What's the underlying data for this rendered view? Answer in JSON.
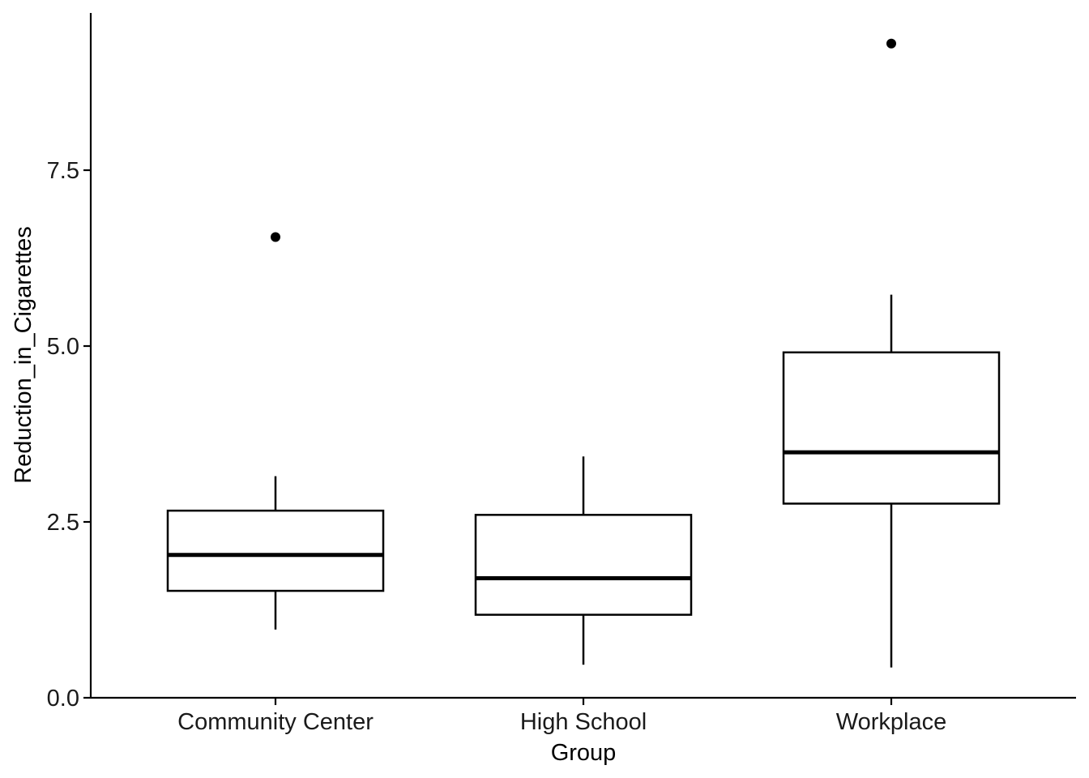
{
  "chart_data": {
    "type": "boxplot",
    "title": "",
    "xlabel": "Group",
    "ylabel": "Reduction_in_Cigarettes",
    "ylim": [
      0,
      9.75
    ],
    "yticks": [
      0.0,
      2.5,
      5.0,
      7.5
    ],
    "ytick_labels": [
      "0.0",
      "2.5",
      "5.0",
      "7.5"
    ],
    "grid": false,
    "legend": "none",
    "categories": [
      "Community Center",
      "High School",
      "Workplace"
    ],
    "boxes": [
      {
        "category": "Community Center",
        "whisker_low": 0.97,
        "q1": 1.52,
        "median": 2.03,
        "q3": 2.66,
        "whisker_high": 3.15,
        "outliers": [
          6.55
        ]
      },
      {
        "category": "High School",
        "whisker_low": 0.47,
        "q1": 1.18,
        "median": 1.7,
        "q3": 2.6,
        "whisker_high": 3.43,
        "outliers": []
      },
      {
        "category": "Workplace",
        "whisker_low": 0.43,
        "q1": 2.76,
        "median": 3.49,
        "q3": 4.91,
        "whisker_high": 5.73,
        "outliers": [
          9.3
        ]
      }
    ]
  }
}
